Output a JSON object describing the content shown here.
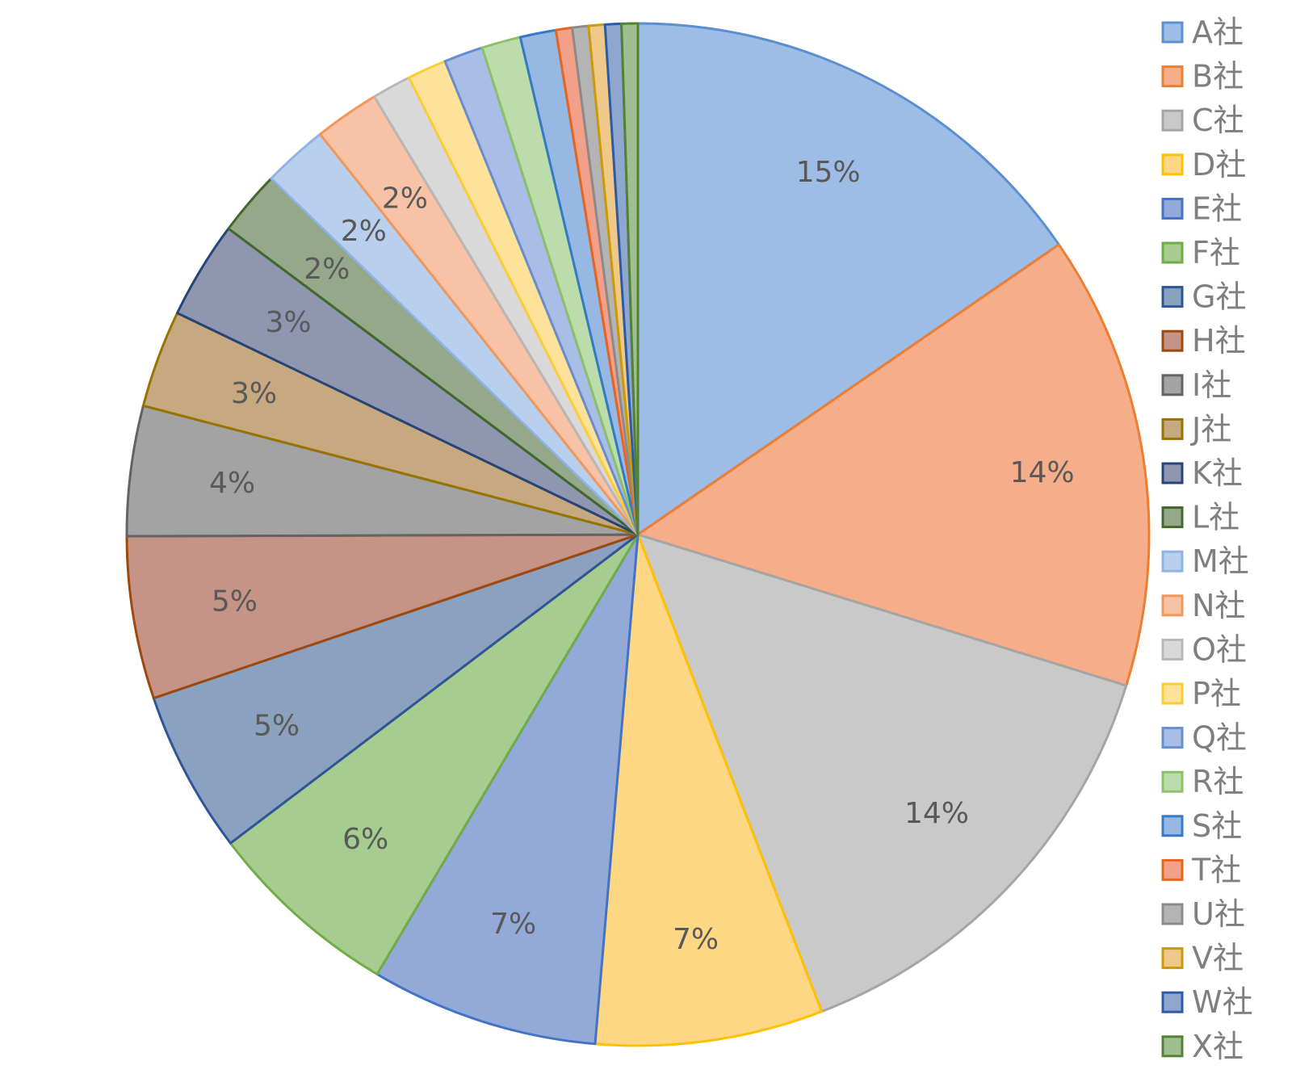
{
  "chart_data": {
    "type": "pie",
    "legend_position": "right",
    "slices": [
      {
        "label": "A社",
        "value": 15,
        "data_label": "15%",
        "color": "#9dbde6",
        "stroke": "#5b8fd0"
      },
      {
        "label": "B社",
        "value": 14,
        "data_label": "14%",
        "color": "#f6ad8a",
        "stroke": "#ed7d31"
      },
      {
        "label": "C社",
        "value": 14,
        "data_label": "14%",
        "color": "#c9c9c9",
        "stroke": "#a5a5a5"
      },
      {
        "label": "D社",
        "value": 7,
        "data_label": "7%",
        "color": "#fed785",
        "stroke": "#ffc000"
      },
      {
        "label": "E社",
        "value": 7,
        "data_label": "7%",
        "color": "#93aad9",
        "stroke": "#4472c4"
      },
      {
        "label": "F社",
        "value": 6,
        "data_label": "6%",
        "color": "#a6cc8f",
        "stroke": "#70ad47"
      },
      {
        "label": "G社",
        "value": 5,
        "data_label": "5%",
        "color": "#8aa1c0",
        "stroke": "#2f5597"
      },
      {
        "label": "H社",
        "value": 5,
        "data_label": "5%",
        "color": "#c59487",
        "stroke": "#9e480e"
      },
      {
        "label": "I社",
        "value": 4,
        "data_label": "4%",
        "color": "#a3a3a3",
        "stroke": "#636363"
      },
      {
        "label": "J社",
        "value": 3,
        "data_label": "3%",
        "color": "#c6a981",
        "stroke": "#997300"
      },
      {
        "label": "K社",
        "value": 3,
        "data_label": "3%",
        "color": "#9096b0",
        "stroke": "#264478"
      },
      {
        "label": "L社",
        "value": 2,
        "data_label": "2%",
        "color": "#95a98a",
        "stroke": "#43682b"
      },
      {
        "label": "M社",
        "value": 2,
        "data_label": "2%",
        "color": "#b8d0ee",
        "stroke": "#8fb4e3"
      },
      {
        "label": "N社",
        "value": 2,
        "data_label": "2%",
        "color": "#f8c2a6",
        "stroke": "#f1975a"
      },
      {
        "label": "O社",
        "value": 1.2,
        "data_label": "",
        "color": "#d9d9d9",
        "stroke": "#b7b7b7"
      },
      {
        "label": "P社",
        "value": 1.2,
        "data_label": "",
        "color": "#ffe29a",
        "stroke": "#ffcd33"
      },
      {
        "label": "Q社",
        "value": 1.2,
        "data_label": "",
        "color": "#a9bde6",
        "stroke": "#698ed0"
      },
      {
        "label": "R社",
        "value": 1.2,
        "data_label": "",
        "color": "#bddcab",
        "stroke": "#8cc168"
      },
      {
        "label": "S社",
        "value": 1.1,
        "data_label": "",
        "color": "#97b8e3",
        "stroke": "#337ac7"
      },
      {
        "label": "T社",
        "value": 0.5,
        "data_label": "",
        "color": "#f3a08a",
        "stroke": "#e8651f"
      },
      {
        "label": "U社",
        "value": 0.5,
        "data_label": "",
        "color": "#b4b4b4",
        "stroke": "#8b8b8b"
      },
      {
        "label": "V社",
        "value": 0.5,
        "data_label": "",
        "color": "#efc98a",
        "stroke": "#cc9a06"
      },
      {
        "label": "W社",
        "value": 0.5,
        "data_label": "",
        "color": "#8fa6cf",
        "stroke": "#2c5ca8"
      },
      {
        "label": "X社",
        "value": 0.5,
        "data_label": "",
        "color": "#9fbf90",
        "stroke": "#548235"
      }
    ]
  }
}
